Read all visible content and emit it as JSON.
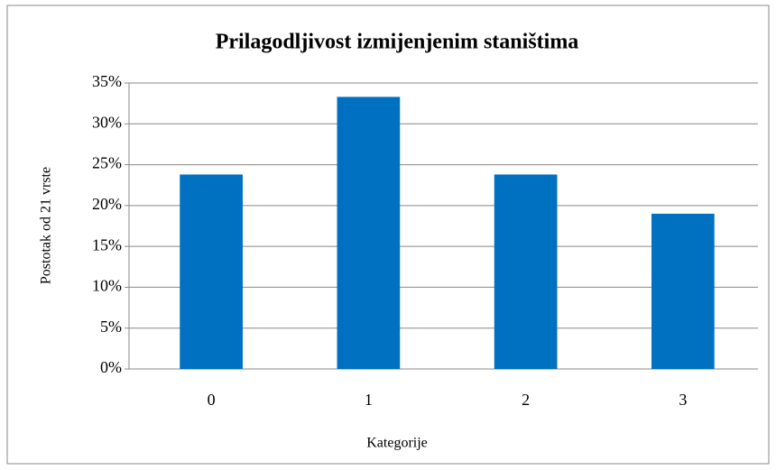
{
  "chart_data": {
    "type": "bar",
    "title": "Prilagodljivost izmijenjenim staništima",
    "x_label": "Kategorije",
    "y_label": "Postotak od 21 vrste",
    "categories": [
      "0",
      "1",
      "2",
      "3"
    ],
    "values": [
      23.8,
      33.3,
      23.8,
      19.0
    ],
    "color": "#0070c0",
    "ylim": [
      0,
      35
    ],
    "yticks": [
      {
        "value": 0,
        "label": "0%"
      },
      {
        "value": 5,
        "label": "5%"
      },
      {
        "value": 10,
        "label": "10%"
      },
      {
        "value": 15,
        "label": "15%"
      },
      {
        "value": 20,
        "label": "20%"
      },
      {
        "value": 25,
        "label": "25%"
      },
      {
        "value": 30,
        "label": "30%"
      },
      {
        "value": 35,
        "label": "35%"
      }
    ],
    "grid": true
  }
}
